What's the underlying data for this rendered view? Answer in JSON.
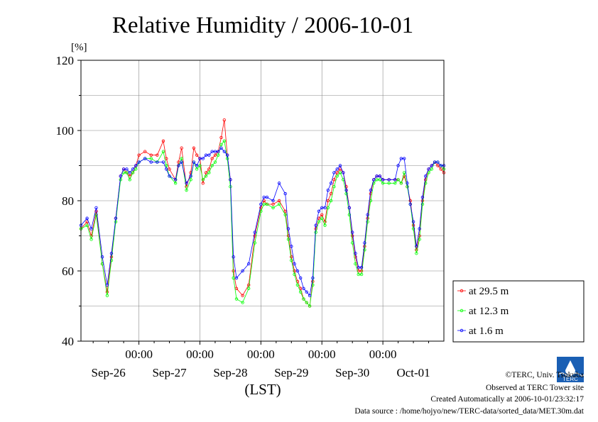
{
  "chart_data": {
    "type": "line",
    "title": "Relative Humidity / 2006-10-01",
    "ylabel": "[%]",
    "xlabel": "(LST)",
    "ylim": [
      40,
      120
    ],
    "yticks": [
      "40",
      "60",
      "80",
      "100",
      "120"
    ],
    "xlim": [
      -0.95,
      5.0
    ],
    "time_ticks": [
      "00:00",
      "00:00",
      "00:00",
      "00:00",
      "00:00"
    ],
    "date_labels": [
      "Sep-26",
      "Sep-27",
      "Sep-28",
      "Sep-29",
      "Sep-30",
      "Oct-01"
    ],
    "grid": true,
    "legend_position": "bottom-right",
    "series": [
      {
        "name": "at 29.5 m",
        "color": "#ff0000",
        "x": [
          -0.95,
          -0.85,
          -0.78,
          -0.7,
          -0.6,
          -0.52,
          -0.45,
          -0.38,
          -0.3,
          -0.25,
          -0.2,
          -0.15,
          -0.1,
          -0.05,
          0.0,
          0.1,
          0.2,
          0.3,
          0.4,
          0.45,
          0.5,
          0.6,
          0.65,
          0.7,
          0.78,
          0.85,
          0.9,
          0.95,
          1.0,
          1.05,
          1.1,
          1.15,
          1.2,
          1.25,
          1.3,
          1.35,
          1.4,
          1.45,
          1.5,
          1.55,
          1.6,
          1.7,
          1.8,
          1.9,
          2.0,
          2.05,
          2.1,
          2.2,
          2.3,
          2.4,
          2.45,
          2.5,
          2.55,
          2.6,
          2.65,
          2.7,
          2.75,
          2.8,
          2.85,
          2.9,
          2.95,
          3.0,
          3.05,
          3.1,
          3.15,
          3.2,
          3.25,
          3.3,
          3.35,
          3.4,
          3.45,
          3.5,
          3.55,
          3.6,
          3.65,
          3.7,
          3.75,
          3.8,
          3.85,
          3.9,
          3.95,
          4.0,
          4.1,
          4.2,
          4.25,
          4.3,
          4.35,
          4.4,
          4.45,
          4.5,
          4.55,
          4.6,
          4.65,
          4.7,
          4.75,
          4.8,
          4.85,
          4.9,
          4.95,
          5.0
        ],
        "y": [
          72,
          74,
          70,
          77,
          62,
          54,
          64,
          75,
          87,
          89,
          88,
          87,
          88,
          90,
          93,
          94,
          93,
          93,
          97,
          92,
          89,
          86,
          91,
          95,
          84,
          88,
          95,
          93,
          92,
          85,
          88,
          89,
          92,
          93,
          94,
          98,
          103,
          93,
          86,
          60,
          55,
          53,
          56,
          70,
          78,
          80,
          79,
          79,
          80,
          77,
          70,
          64,
          60,
          57,
          55,
          52,
          51,
          50,
          57,
          72,
          75,
          76,
          74,
          80,
          82,
          86,
          88,
          89,
          88,
          84,
          78,
          70,
          64,
          60,
          60,
          67,
          75,
          82,
          86,
          87,
          87,
          86,
          86,
          86,
          86,
          85,
          87,
          84,
          80,
          73,
          66,
          70,
          80,
          86,
          89,
          90,
          91,
          90,
          89,
          88
        ]
      },
      {
        "name": "at 12.3 m",
        "color": "#00ff00",
        "x": [
          -0.95,
          -0.85,
          -0.78,
          -0.7,
          -0.6,
          -0.52,
          -0.45,
          -0.38,
          -0.3,
          -0.25,
          -0.2,
          -0.15,
          -0.1,
          -0.05,
          0.0,
          0.1,
          0.2,
          0.3,
          0.4,
          0.45,
          0.5,
          0.6,
          0.65,
          0.7,
          0.78,
          0.85,
          0.9,
          0.95,
          1.0,
          1.05,
          1.1,
          1.15,
          1.2,
          1.25,
          1.3,
          1.35,
          1.4,
          1.45,
          1.5,
          1.55,
          1.6,
          1.7,
          1.8,
          1.9,
          2.0,
          2.05,
          2.1,
          2.2,
          2.3,
          2.4,
          2.45,
          2.5,
          2.55,
          2.6,
          2.65,
          2.7,
          2.75,
          2.8,
          2.85,
          2.9,
          2.95,
          3.0,
          3.05,
          3.1,
          3.15,
          3.2,
          3.25,
          3.3,
          3.35,
          3.4,
          3.45,
          3.5,
          3.55,
          3.6,
          3.65,
          3.7,
          3.75,
          3.8,
          3.85,
          3.9,
          3.95,
          4.0,
          4.1,
          4.2,
          4.25,
          4.3,
          4.35,
          4.4,
          4.45,
          4.5,
          4.55,
          4.6,
          4.65,
          4.7,
          4.75,
          4.8,
          4.85,
          4.9,
          4.95,
          5.0
        ],
        "y": [
          72,
          73,
          69,
          76,
          62,
          53,
          63,
          74,
          86,
          88,
          88,
          86,
          88,
          89,
          91,
          92,
          92,
          91,
          94,
          90,
          87,
          85,
          90,
          92,
          83,
          86,
          91,
          89,
          90,
          86,
          87,
          88,
          90,
          91,
          93,
          96,
          97,
          92,
          84,
          58,
          52,
          51,
          55,
          68,
          77,
          79,
          79,
          78,
          79,
          76,
          69,
          63,
          59,
          56,
          54,
          52,
          51,
          50,
          56,
          71,
          74,
          75,
          73,
          78,
          80,
          84,
          87,
          88,
          86,
          82,
          76,
          68,
          62,
          59,
          59,
          66,
          74,
          80,
          85,
          86,
          86,
          85,
          85,
          85,
          86,
          85,
          88,
          84,
          79,
          72,
          65,
          69,
          79,
          85,
          88,
          89,
          91,
          91,
          90,
          89
        ]
      },
      {
        "name": "at 1.6 m",
        "color": "#0000ff",
        "x": [
          -0.95,
          -0.85,
          -0.78,
          -0.7,
          -0.6,
          -0.52,
          -0.45,
          -0.38,
          -0.3,
          -0.25,
          -0.2,
          -0.15,
          -0.1,
          -0.05,
          0.0,
          0.1,
          0.2,
          0.3,
          0.4,
          0.45,
          0.5,
          0.6,
          0.65,
          0.7,
          0.78,
          0.85,
          0.9,
          0.95,
          1.0,
          1.05,
          1.1,
          1.15,
          1.2,
          1.25,
          1.3,
          1.35,
          1.4,
          1.45,
          1.5,
          1.55,
          1.6,
          1.7,
          1.8,
          1.9,
          2.0,
          2.05,
          2.1,
          2.2,
          2.3,
          2.4,
          2.45,
          2.5,
          2.55,
          2.6,
          2.65,
          2.7,
          2.75,
          2.8,
          2.85,
          2.9,
          2.95,
          3.0,
          3.05,
          3.1,
          3.15,
          3.2,
          3.25,
          3.3,
          3.35,
          3.4,
          3.45,
          3.5,
          3.55,
          3.6,
          3.65,
          3.7,
          3.75,
          3.8,
          3.85,
          3.9,
          3.95,
          4.0,
          4.1,
          4.2,
          4.25,
          4.3,
          4.35,
          4.4,
          4.45,
          4.5,
          4.55,
          4.6,
          4.65,
          4.7,
          4.75,
          4.8,
          4.85,
          4.9,
          4.95,
          5.0
        ],
        "y": [
          73,
          75,
          72,
          78,
          64,
          56,
          65,
          75,
          87,
          89,
          89,
          88,
          89,
          90,
          91,
          92,
          91,
          91,
          91,
          89,
          87,
          86,
          90,
          91,
          85,
          87,
          91,
          90,
          92,
          92,
          93,
          93,
          94,
          94,
          94,
          95,
          94,
          93,
          86,
          64,
          58,
          60,
          62,
          71,
          79,
          81,
          81,
          80,
          85,
          82,
          72,
          67,
          62,
          60,
          58,
          55,
          54,
          53,
          58,
          73,
          77,
          78,
          78,
          83,
          85,
          88,
          89,
          90,
          88,
          83,
          78,
          71,
          65,
          61,
          61,
          68,
          76,
          83,
          86,
          87,
          87,
          86,
          86,
          86,
          90,
          92,
          92,
          85,
          79,
          74,
          67,
          72,
          81,
          87,
          89,
          90,
          91,
          91,
          90,
          90
        ]
      }
    ]
  },
  "footer": {
    "credit": "©TERC, Univ. Tsukuba",
    "observed": "Observed at TERC Tower site",
    "created": "Created Automatically at 2006-10-01/23:32:17",
    "source": "Data source : /home/hojyo/new/TERC-data/sorted_data/MET.30m.dat"
  },
  "logo": {
    "text": "TERC",
    "color": "#1a5fb4"
  }
}
